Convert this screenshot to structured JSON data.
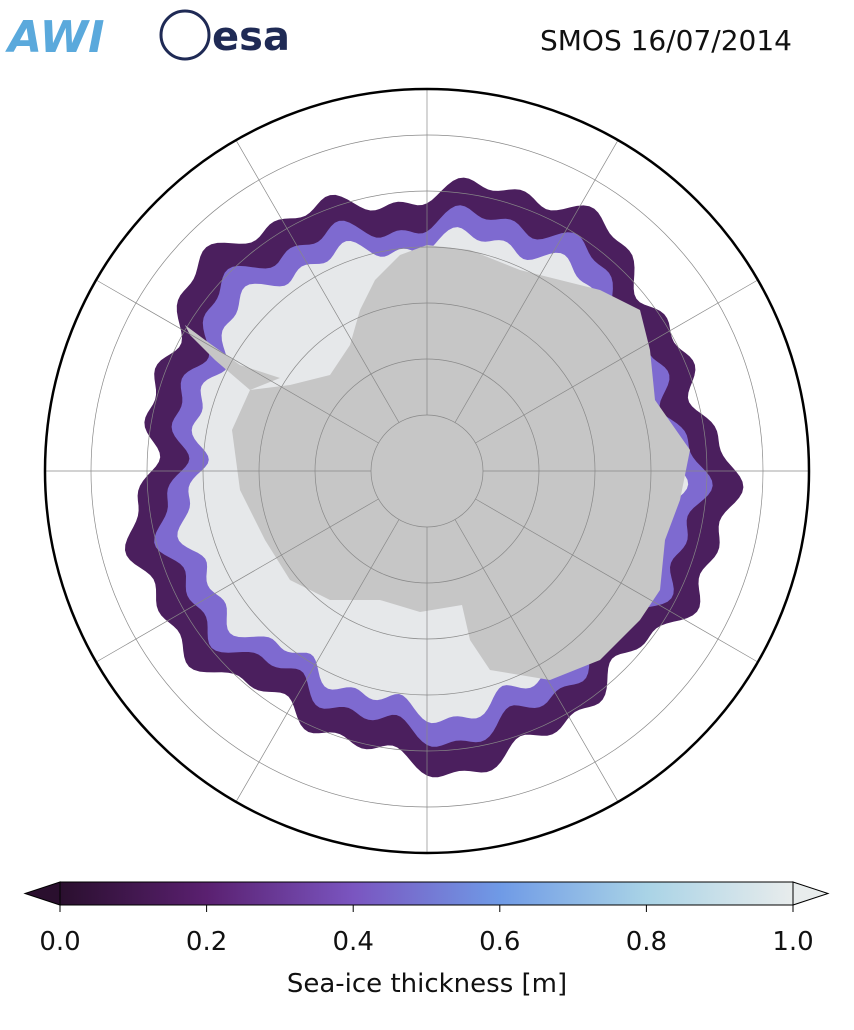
{
  "header": {
    "logos": [
      "AWI",
      "esa"
    ],
    "title": "SMOS 16/07/2014"
  },
  "colorbar": {
    "label": "Sea-ice thickness [m]",
    "lim": [
      0,
      1
    ],
    "ticks": [
      {
        "value": 0,
        "label": "0.0"
      },
      0.2,
      0.4,
      0.6,
      0.8,
      {
        "value": 1,
        "label": "1.0"
      }
    ],
    "colormap": [
      "#2a0f2e",
      "#5a2070",
      "#7a55c0",
      "#6f9ae6",
      "#a9d3e6",
      "#e8ecec"
    ]
  }
}
